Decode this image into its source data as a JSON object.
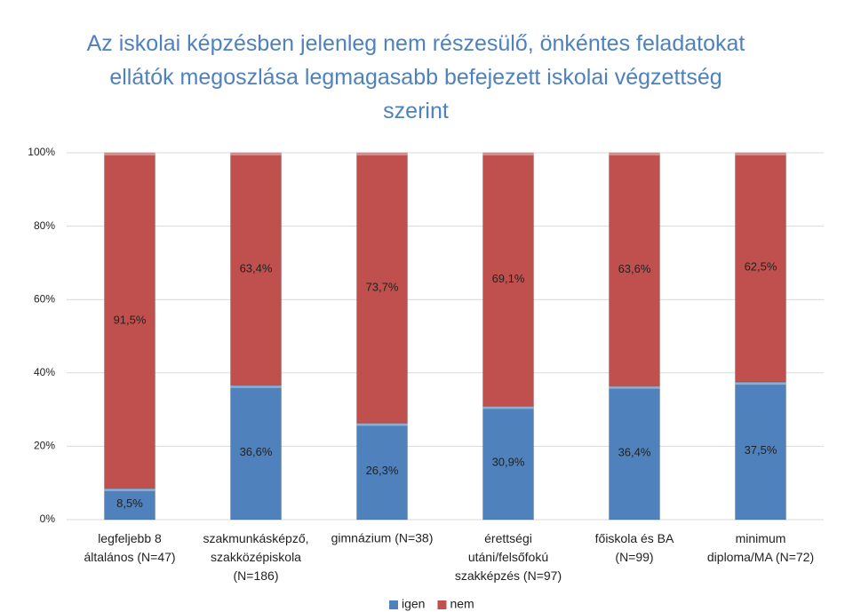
{
  "chart_data": {
    "type": "stacked-bar-100",
    "title": "Az iskolai képzésben jelenleg nem részesülő, önkéntes feladatokat\nellátók megoszlása legmagasabb befejezett iskolai végzettség\nszerint",
    "categories": [
      "legfeljebb 8\náltalános (N=47)",
      "szakmunkásképző,\nszakközépiskola\n(N=186)",
      "gimnázium (N=38)",
      "érettségi\nutáni/felsőfokú\nszakképzés (N=97)",
      "főiskola és BA\n(N=99)",
      "minimum\ndiploma/MA (N=72)"
    ],
    "series": [
      {
        "name": "igen",
        "color": "#4f81bd",
        "values": [
          8.5,
          36.6,
          26.3,
          30.9,
          36.4,
          37.5
        ],
        "value_labels": [
          "8,5%",
          "36,6%",
          "26,3%",
          "30,9%",
          "36,4%",
          "37,5%"
        ]
      },
      {
        "name": "nem",
        "color": "#c0504d",
        "values": [
          91.5,
          63.4,
          73.7,
          69.1,
          63.6,
          62.5
        ],
        "value_labels": [
          "91,5%",
          "63,4%",
          "73,7%",
          "69,1%",
          "63,6%",
          "62,5%"
        ]
      }
    ],
    "ylim": [
      0,
      100
    ],
    "yticks": [
      {
        "value": 0,
        "label": "0%"
      },
      {
        "value": 20,
        "label": "20%"
      },
      {
        "value": 40,
        "label": "40%"
      },
      {
        "value": 60,
        "label": "60%"
      },
      {
        "value": 80,
        "label": "80%"
      },
      {
        "value": 100,
        "label": "100%"
      }
    ],
    "grid": true,
    "legend": "bottom"
  }
}
